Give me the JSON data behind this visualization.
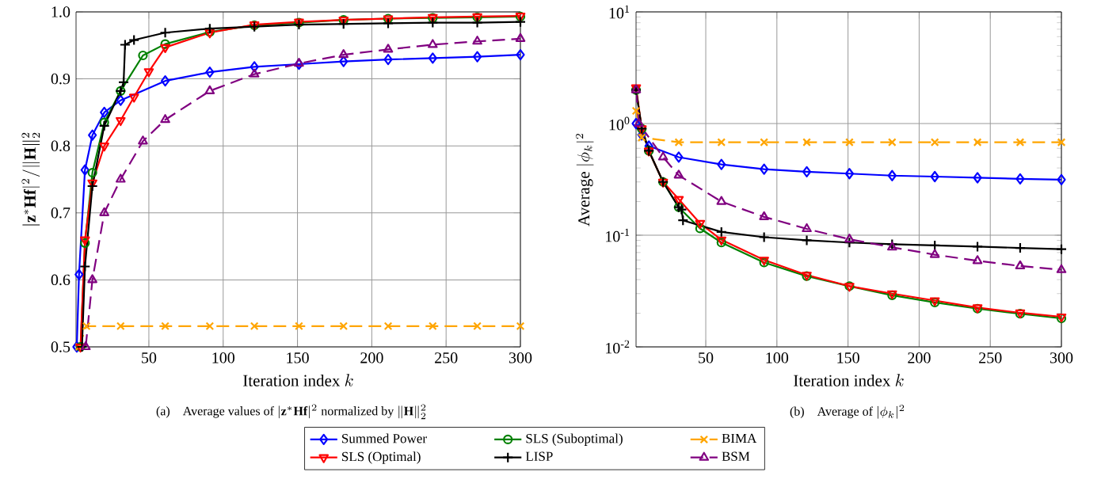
{
  "chart_data": [
    {
      "type": "line",
      "title": "\\text{(a)\\quad Average values of } |\\mathbf{z}^*\\mathbf{H}\\mathbf{f}|^2 \\text{ normalized by } \\|\\mathbf{H}\\|_2^2",
      "xlabel": "\\text{Iteration index } k",
      "ylabel": "|\\mathbf{z}^*\\mathbf{H}\\mathbf{f}|^2/\\|\\mathbf{H}\\|_2^2",
      "xlim": [
        1,
        300
      ],
      "xticks": [
        50,
        100,
        150,
        200,
        250,
        300
      ],
      "ylim": [
        0.5,
        1
      ],
      "yticks": [
        0.5,
        0.6,
        0.7,
        0.8,
        0.9,
        {
          "value": 1,
          "label": "1.0"
        }
      ],
      "grid": true,
      "legend": "bottom",
      "series": [
        {
          "name": "Summed Power",
          "color": "#0000ff",
          "marker": "diamond",
          "line_style": "solid",
          "x": [
            1.5,
            3,
            7,
            12,
            20,
            31,
            61,
            91,
            121,
            151,
            181,
            211,
            241,
            271,
            300
          ],
          "values": [
            0.5,
            0.608,
            0.764,
            0.816,
            0.85,
            0.868,
            0.897,
            0.91,
            0.918,
            0.922,
            0.926,
            0.929,
            0.931,
            0.933,
            0.936
          ]
        },
        {
          "name": "SLS (Suboptimal)",
          "color": "#008000",
          "marker": "circle",
          "line_style": "solid",
          "x": [
            4,
            7,
            12,
            20,
            31,
            46,
            61,
            91,
            121,
            151,
            181,
            211,
            241,
            271,
            300
          ],
          "values": [
            0.5,
            0.655,
            0.76,
            0.835,
            0.882,
            0.935,
            0.952,
            0.97,
            0.98,
            0.984,
            0.988,
            0.99,
            0.991,
            0.992,
            0.993
          ]
        },
        {
          "name": "BIMA",
          "color": "#ffa500",
          "marker": "cross",
          "line_style": "dashed",
          "x": [
            3,
            8,
            31,
            61,
            91,
            121,
            151,
            181,
            211,
            241,
            271,
            300
          ],
          "values": [
            0.5,
            0.531,
            0.531,
            0.531,
            0.531,
            0.531,
            0.531,
            0.531,
            0.531,
            0.531,
            0.531,
            0.531
          ]
        },
        {
          "name": "SLS (Optimal)",
          "color": "#ff0000",
          "marker": "triangle down",
          "line_style": "solid",
          "x": [
            4,
            7,
            12,
            20,
            31,
            40,
            50,
            61,
            91,
            121,
            151,
            181,
            211,
            241,
            271,
            300
          ],
          "values": [
            0.5,
            0.66,
            0.745,
            0.8,
            0.838,
            0.873,
            0.911,
            0.947,
            0.969,
            0.981,
            0.985,
            0.988,
            0.99,
            0.992,
            0.993,
            0.994
          ]
        },
        {
          "name": "LISP",
          "color": "#000000",
          "marker": "plus",
          "line_style": "solid",
          "x": [
            5,
            7,
            12,
            20,
            31,
            33,
            34,
            40,
            61,
            91,
            121,
            151,
            181,
            211,
            241,
            271,
            300
          ],
          "values": [
            0.5,
            0.62,
            0.74,
            0.83,
            0.882,
            0.895,
            0.951,
            0.958,
            0.969,
            0.975,
            0.978,
            0.981,
            0.982,
            0.983,
            0.984,
            0.984,
            0.985
          ]
        },
        {
          "name": "BSM",
          "color": "#800080",
          "marker": "triangle",
          "line_style": "dashed",
          "x": [
            7.5,
            12,
            20,
            31,
            46,
            61,
            91,
            121,
            151,
            181,
            211,
            241,
            271,
            300
          ],
          "values": [
            0.5,
            0.6,
            0.7,
            0.75,
            0.807,
            0.839,
            0.882,
            0.907,
            0.923,
            0.936,
            0.944,
            0.951,
            0.956,
            0.96
          ]
        }
      ]
    },
    {
      "type": "line",
      "title": "\\text{(b)\\quad Average of } |\\phi_k|^2",
      "xlabel": "\\text{Iteration index } k",
      "ylabel": "\\text{Average } |\\phi_k|^2",
      "log": "y",
      "xlim": [
        1,
        300
      ],
      "xticks": [
        50,
        100,
        150,
        200,
        250,
        300
      ],
      "ylim": [
        0.01,
        10
      ],
      "yticks": [
        {
          "value": 0.01,
          "label": "10$^{-2}$"
        },
        {
          "value": 0.1,
          "label": "10$^{-1}$"
        },
        {
          "value": 1,
          "label": "10$^{0}$"
        },
        {
          "value": 10,
          "label": "10$^{1}$"
        }
      ],
      "grid": true,
      "series": [
        {
          "color": "#0000ff",
          "marker": "diamond",
          "line_style": "solid",
          "x": [
            1,
            5,
            10,
            31,
            61,
            91,
            121,
            151,
            181,
            211,
            241,
            271,
            300
          ],
          "values": [
            1.0,
            0.79,
            0.63,
            0.5,
            0.43,
            0.39,
            0.37,
            0.356,
            0.342,
            0.335,
            0.327,
            0.32,
            0.314
          ]
        },
        {
          "color": "#008000",
          "marker": "circle",
          "line_style": "solid",
          "x": [
            1,
            5,
            10,
            20,
            31,
            46,
            61,
            91,
            121,
            151,
            181,
            211,
            241,
            271,
            300
          ],
          "values": [
            2.0,
            0.9,
            0.57,
            0.3,
            0.178,
            0.115,
            0.086,
            0.057,
            0.043,
            0.035,
            0.029,
            0.025,
            0.022,
            0.0198,
            0.018
          ]
        },
        {
          "color": "#ffa500",
          "marker": "cross",
          "line_style": "dashed",
          "x": [
            1,
            5,
            31,
            61,
            91,
            121,
            151,
            181,
            211,
            241,
            271,
            300
          ],
          "values": [
            1.3,
            0.75,
            0.68,
            0.68,
            0.68,
            0.68,
            0.68,
            0.68,
            0.68,
            0.68,
            0.68,
            0.68
          ]
        },
        {
          "color": "#ff0000",
          "marker": "triangle down",
          "line_style": "solid",
          "x": [
            1,
            5,
            10,
            20,
            31,
            46,
            61,
            91,
            121,
            151,
            181,
            211,
            241,
            271,
            300
          ],
          "values": [
            2.1,
            0.9,
            0.57,
            0.3,
            0.21,
            0.128,
            0.091,
            0.06,
            0.044,
            0.035,
            0.03,
            0.026,
            0.0225,
            0.0202,
            0.0186
          ]
        },
        {
          "color": "#000000",
          "marker": "plus",
          "line_style": "solid",
          "x": [
            1,
            5,
            10,
            20,
            31,
            33,
            34,
            61,
            91,
            121,
            151,
            181,
            211,
            241,
            271,
            300
          ],
          "values": [
            2.0,
            0.9,
            0.57,
            0.3,
            0.178,
            0.17,
            0.136,
            0.107,
            0.096,
            0.09,
            0.086,
            0.083,
            0.081,
            0.079,
            0.077,
            0.075
          ]
        },
        {
          "color": "#800080",
          "marker": "triangle",
          "line_style": "dashed",
          "x": [
            1,
            3,
            20,
            31,
            61,
            91,
            121,
            151,
            181,
            211,
            241,
            271,
            300
          ],
          "values": [
            2.0,
            1.0,
            0.5,
            0.344,
            0.2,
            0.146,
            0.114,
            0.092,
            0.078,
            0.067,
            0.059,
            0.053,
            0.049
          ]
        }
      ]
    }
  ]
}
